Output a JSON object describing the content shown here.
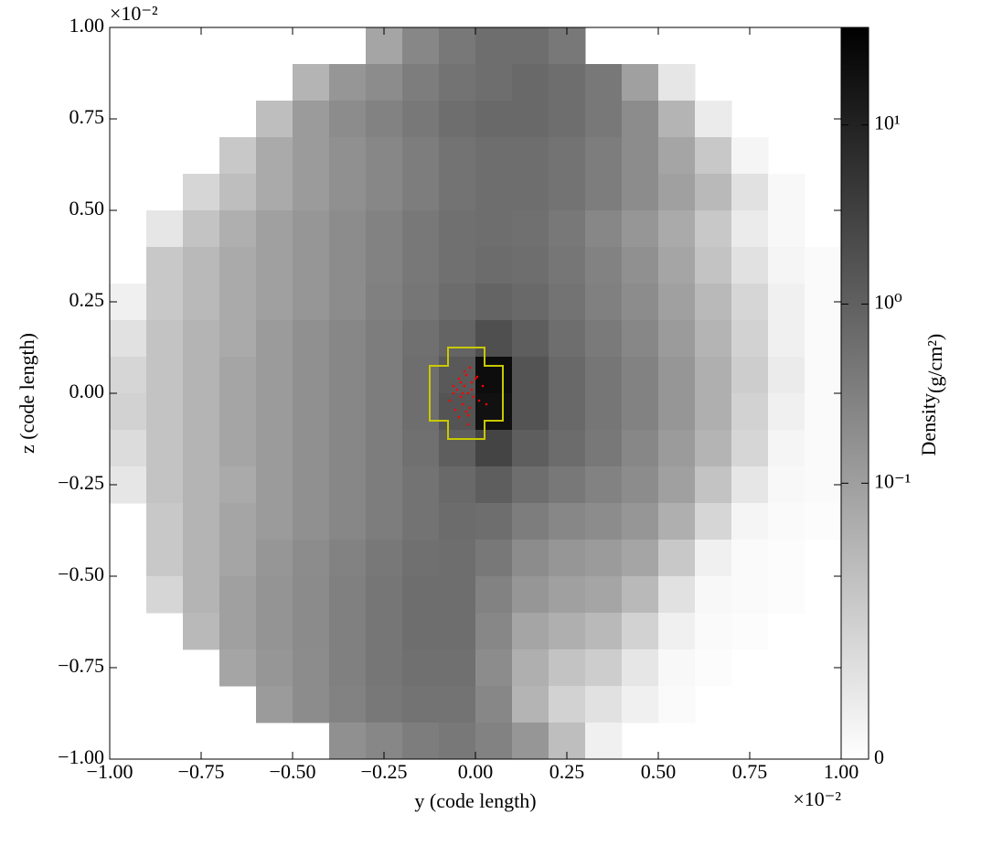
{
  "chart_data": {
    "type": "heatmap",
    "xlabel": "y  (code length)",
    "ylabel": "z  (code length)",
    "x_offset_label": "×10⁻²",
    "y_offset_label": "×10⁻²",
    "xlim": [
      -1,
      1
    ],
    "ylim": [
      -1,
      1
    ],
    "xticks": [
      {
        "value": -1,
        "label": "−1.00"
      },
      {
        "value": -0.75,
        "label": "−0.75"
      },
      {
        "value": -0.5,
        "label": "−0.50"
      },
      {
        "value": -0.25,
        "label": "−0.25"
      },
      {
        "value": 0,
        "label": "0.00"
      },
      {
        "value": 0.25,
        "label": "0.25"
      },
      {
        "value": 0.5,
        "label": "0.50"
      },
      {
        "value": 0.75,
        "label": "0.75"
      },
      {
        "value": 1,
        "label": "1.00"
      }
    ],
    "yticks": [
      {
        "value": -1,
        "label": "−1.00"
      },
      {
        "value": -0.75,
        "label": "−0.75"
      },
      {
        "value": -0.5,
        "label": "−0.50"
      },
      {
        "value": -0.25,
        "label": "−0.25"
      },
      {
        "value": 0,
        "label": "0.00"
      },
      {
        "value": 0.25,
        "label": "0.25"
      },
      {
        "value": 0.5,
        "label": "0.50"
      },
      {
        "value": 0.75,
        "label": "0.75"
      },
      {
        "value": 1,
        "label": "1.00"
      }
    ],
    "xbins": [
      -1,
      -0.9,
      -0.8,
      -0.7,
      -0.6,
      -0.5,
      -0.4,
      -0.3,
      -0.2,
      -0.1,
      0,
      0.1,
      0.2,
      0.3,
      0.4,
      0.5,
      0.6,
      0.7,
      0.8,
      0.9,
      1
    ],
    "ybins": [
      1,
      0.9,
      0.8,
      0.7,
      0.6,
      0.5,
      0.4,
      0.3,
      0.2,
      0.1,
      0,
      -0.1,
      -0.2,
      -0.3,
      -0.4,
      -0.5,
      -0.6,
      -0.7,
      -0.8,
      -0.9,
      -1
    ],
    "z": [
      [
        null,
        null,
        null,
        null,
        null,
        null,
        null,
        0.08,
        0.24,
        0.42,
        0.61,
        0.61,
        0.42,
        null,
        null,
        null,
        null,
        null,
        null,
        null
      ],
      [
        null,
        null,
        null,
        null,
        null,
        0.046,
        0.14,
        0.2,
        0.35,
        0.51,
        0.61,
        0.74,
        0.61,
        0.42,
        0.095,
        0.0074,
        null,
        null,
        null,
        null
      ],
      [
        null,
        null,
        null,
        null,
        0.032,
        0.115,
        0.2,
        0.29,
        0.42,
        0.61,
        0.74,
        0.74,
        0.61,
        0.42,
        0.2,
        0.046,
        0.006,
        null,
        null,
        null
      ],
      [
        null,
        null,
        null,
        0.022,
        0.066,
        0.115,
        0.17,
        0.24,
        0.35,
        0.51,
        0.61,
        0.61,
        0.51,
        0.35,
        0.2,
        0.08,
        0.022,
        0.003,
        null,
        null
      ],
      [
        null,
        null,
        0.013,
        0.032,
        0.066,
        0.115,
        0.17,
        0.24,
        0.35,
        0.51,
        0.61,
        0.61,
        0.51,
        0.35,
        0.2,
        0.095,
        0.038,
        0.009,
        0.0021,
        null
      ],
      [
        null,
        0.0074,
        0.026,
        0.055,
        0.095,
        0.14,
        0.2,
        0.29,
        0.42,
        0.56,
        0.61,
        0.56,
        0.42,
        0.24,
        0.14,
        0.066,
        0.022,
        0.006,
        0.0021,
        null
      ],
      [
        null,
        0.022,
        0.038,
        0.066,
        0.095,
        0.14,
        0.2,
        0.29,
        0.42,
        0.56,
        0.66,
        0.61,
        0.45,
        0.29,
        0.17,
        0.08,
        0.026,
        0.009,
        0.003,
        0.0015
      ],
      [
        0.0044,
        0.022,
        0.038,
        0.066,
        0.095,
        0.14,
        0.2,
        0.31,
        0.45,
        0.66,
        0.88,
        0.74,
        0.51,
        0.31,
        0.2,
        0.095,
        0.038,
        0.013,
        0.0044,
        0.0015
      ],
      [
        0.009,
        0.026,
        0.046,
        0.066,
        0.115,
        0.17,
        0.24,
        0.35,
        0.56,
        0.88,
        1.9,
        1.1,
        0.61,
        0.39,
        0.24,
        0.115,
        0.046,
        0.015,
        0.0044,
        0.0015
      ],
      [
        0.013,
        0.026,
        0.046,
        0.08,
        0.115,
        0.17,
        0.24,
        0.35,
        0.61,
        1.3,
        22,
        1.6,
        0.74,
        0.45,
        0.29,
        0.14,
        0.055,
        0.018,
        0.006,
        0.0015
      ],
      [
        0.015,
        0.026,
        0.046,
        0.08,
        0.115,
        0.17,
        0.24,
        0.35,
        0.61,
        1.6,
        19,
        1.6,
        0.74,
        0.45,
        0.29,
        0.14,
        0.055,
        0.015,
        0.0044,
        0.0015
      ],
      [
        0.0105,
        0.026,
        0.046,
        0.08,
        0.115,
        0.17,
        0.24,
        0.35,
        0.56,
        1.1,
        2.8,
        1.1,
        0.66,
        0.42,
        0.24,
        0.115,
        0.046,
        0.013,
        0.003,
        0.0015
      ],
      [
        0.0074,
        0.026,
        0.046,
        0.066,
        0.115,
        0.17,
        0.24,
        0.35,
        0.51,
        0.74,
        1.1,
        0.61,
        0.42,
        0.29,
        0.2,
        0.095,
        0.026,
        0.0074,
        0.0021,
        0.0015
      ],
      [
        null,
        0.022,
        0.046,
        0.08,
        0.115,
        0.17,
        0.24,
        0.35,
        0.51,
        0.66,
        0.61,
        0.35,
        0.24,
        0.2,
        0.14,
        0.055,
        0.013,
        0.003,
        0.0015,
        0.0009
      ],
      [
        null,
        0.022,
        0.046,
        0.08,
        0.14,
        0.2,
        0.29,
        0.42,
        0.56,
        0.61,
        0.42,
        0.2,
        0.14,
        0.115,
        0.08,
        0.022,
        0.0044,
        0.0015,
        0.0009,
        null
      ],
      [
        null,
        0.013,
        0.046,
        0.095,
        0.15,
        0.21,
        0.31,
        0.45,
        0.61,
        0.61,
        0.29,
        0.14,
        0.095,
        0.08,
        0.038,
        0.009,
        0.0021,
        0.0015,
        0.0009,
        null
      ],
      [
        null,
        null,
        0.038,
        0.095,
        0.15,
        0.21,
        0.31,
        0.45,
        0.61,
        0.61,
        0.24,
        0.08,
        0.055,
        0.038,
        0.015,
        0.0044,
        0.0015,
        0.0009,
        null,
        null
      ],
      [
        null,
        null,
        null,
        0.08,
        0.14,
        0.2,
        0.31,
        0.45,
        0.56,
        0.56,
        0.2,
        0.055,
        0.026,
        0.018,
        0.0074,
        0.0021,
        0.0009,
        null,
        null,
        null
      ],
      [
        null,
        null,
        null,
        null,
        0.115,
        0.2,
        0.29,
        0.42,
        0.51,
        0.51,
        0.24,
        0.046,
        0.015,
        0.009,
        0.0044,
        0.0015,
        null,
        null,
        null,
        null
      ],
      [
        null,
        null,
        null,
        null,
        null,
        null,
        0.17,
        0.24,
        0.35,
        0.42,
        0.29,
        0.14,
        0.032,
        0.0044,
        null,
        null,
        null,
        null,
        null,
        null
      ]
    ],
    "colorbar": {
      "label": "Density",
      "unit": "(g/cm²)",
      "clim": [
        0,
        35
      ],
      "scale": "symlog",
      "linthresh": 0.01,
      "linscale": 0.54,
      "ticks": [
        0,
        {
          "value": 0.1,
          "label": "10⁻¹"
        },
        {
          "value": 1,
          "label": "10⁰"
        },
        {
          "value": 10,
          "label": "10¹"
        }
      ]
    },
    "contour": {
      "color": "#c8c800",
      "y": [
        -0.075,
        0.025,
        0.025,
        0.075,
        0.075,
        0.025,
        0.025,
        -0.075,
        -0.075,
        -0.125,
        -0.125,
        -0.075
      ],
      "z": [
        0.125,
        0.125,
        0.075,
        0.075,
        -0.075,
        -0.075,
        -0.125,
        -0.125,
        -0.075,
        -0.075,
        0.075,
        0.075
      ]
    },
    "particles": {
      "color": "#ff0000",
      "y": [
        -0.03,
        -0.02,
        -0.01,
        -0.04,
        -0.05,
        0.0,
        0.01,
        -0.025,
        -0.035,
        -0.015,
        -0.06,
        0.02,
        -0.045,
        -0.005,
        -0.03,
        -0.02,
        -0.07,
        0.03,
        -0.01,
        -0.04,
        -0.025,
        -0.055,
        0.005,
        -0.035,
        -0.015,
        -0.06,
        -0.02,
        -0.045
      ],
      "z": [
        0.02,
        0.0,
        0.03,
        -0.01,
        0.01,
        0.04,
        -0.02,
        0.05,
        -0.03,
        -0.04,
        0.0,
        0.02,
        0.04,
        -0.01,
        0.06,
        -0.06,
        -0.02,
        -0.03,
        0.01,
        0.03,
        -0.05,
        -0.045,
        0.045,
        0.0,
        0.07,
        0.02,
        -0.085,
        -0.065
      ]
    }
  }
}
